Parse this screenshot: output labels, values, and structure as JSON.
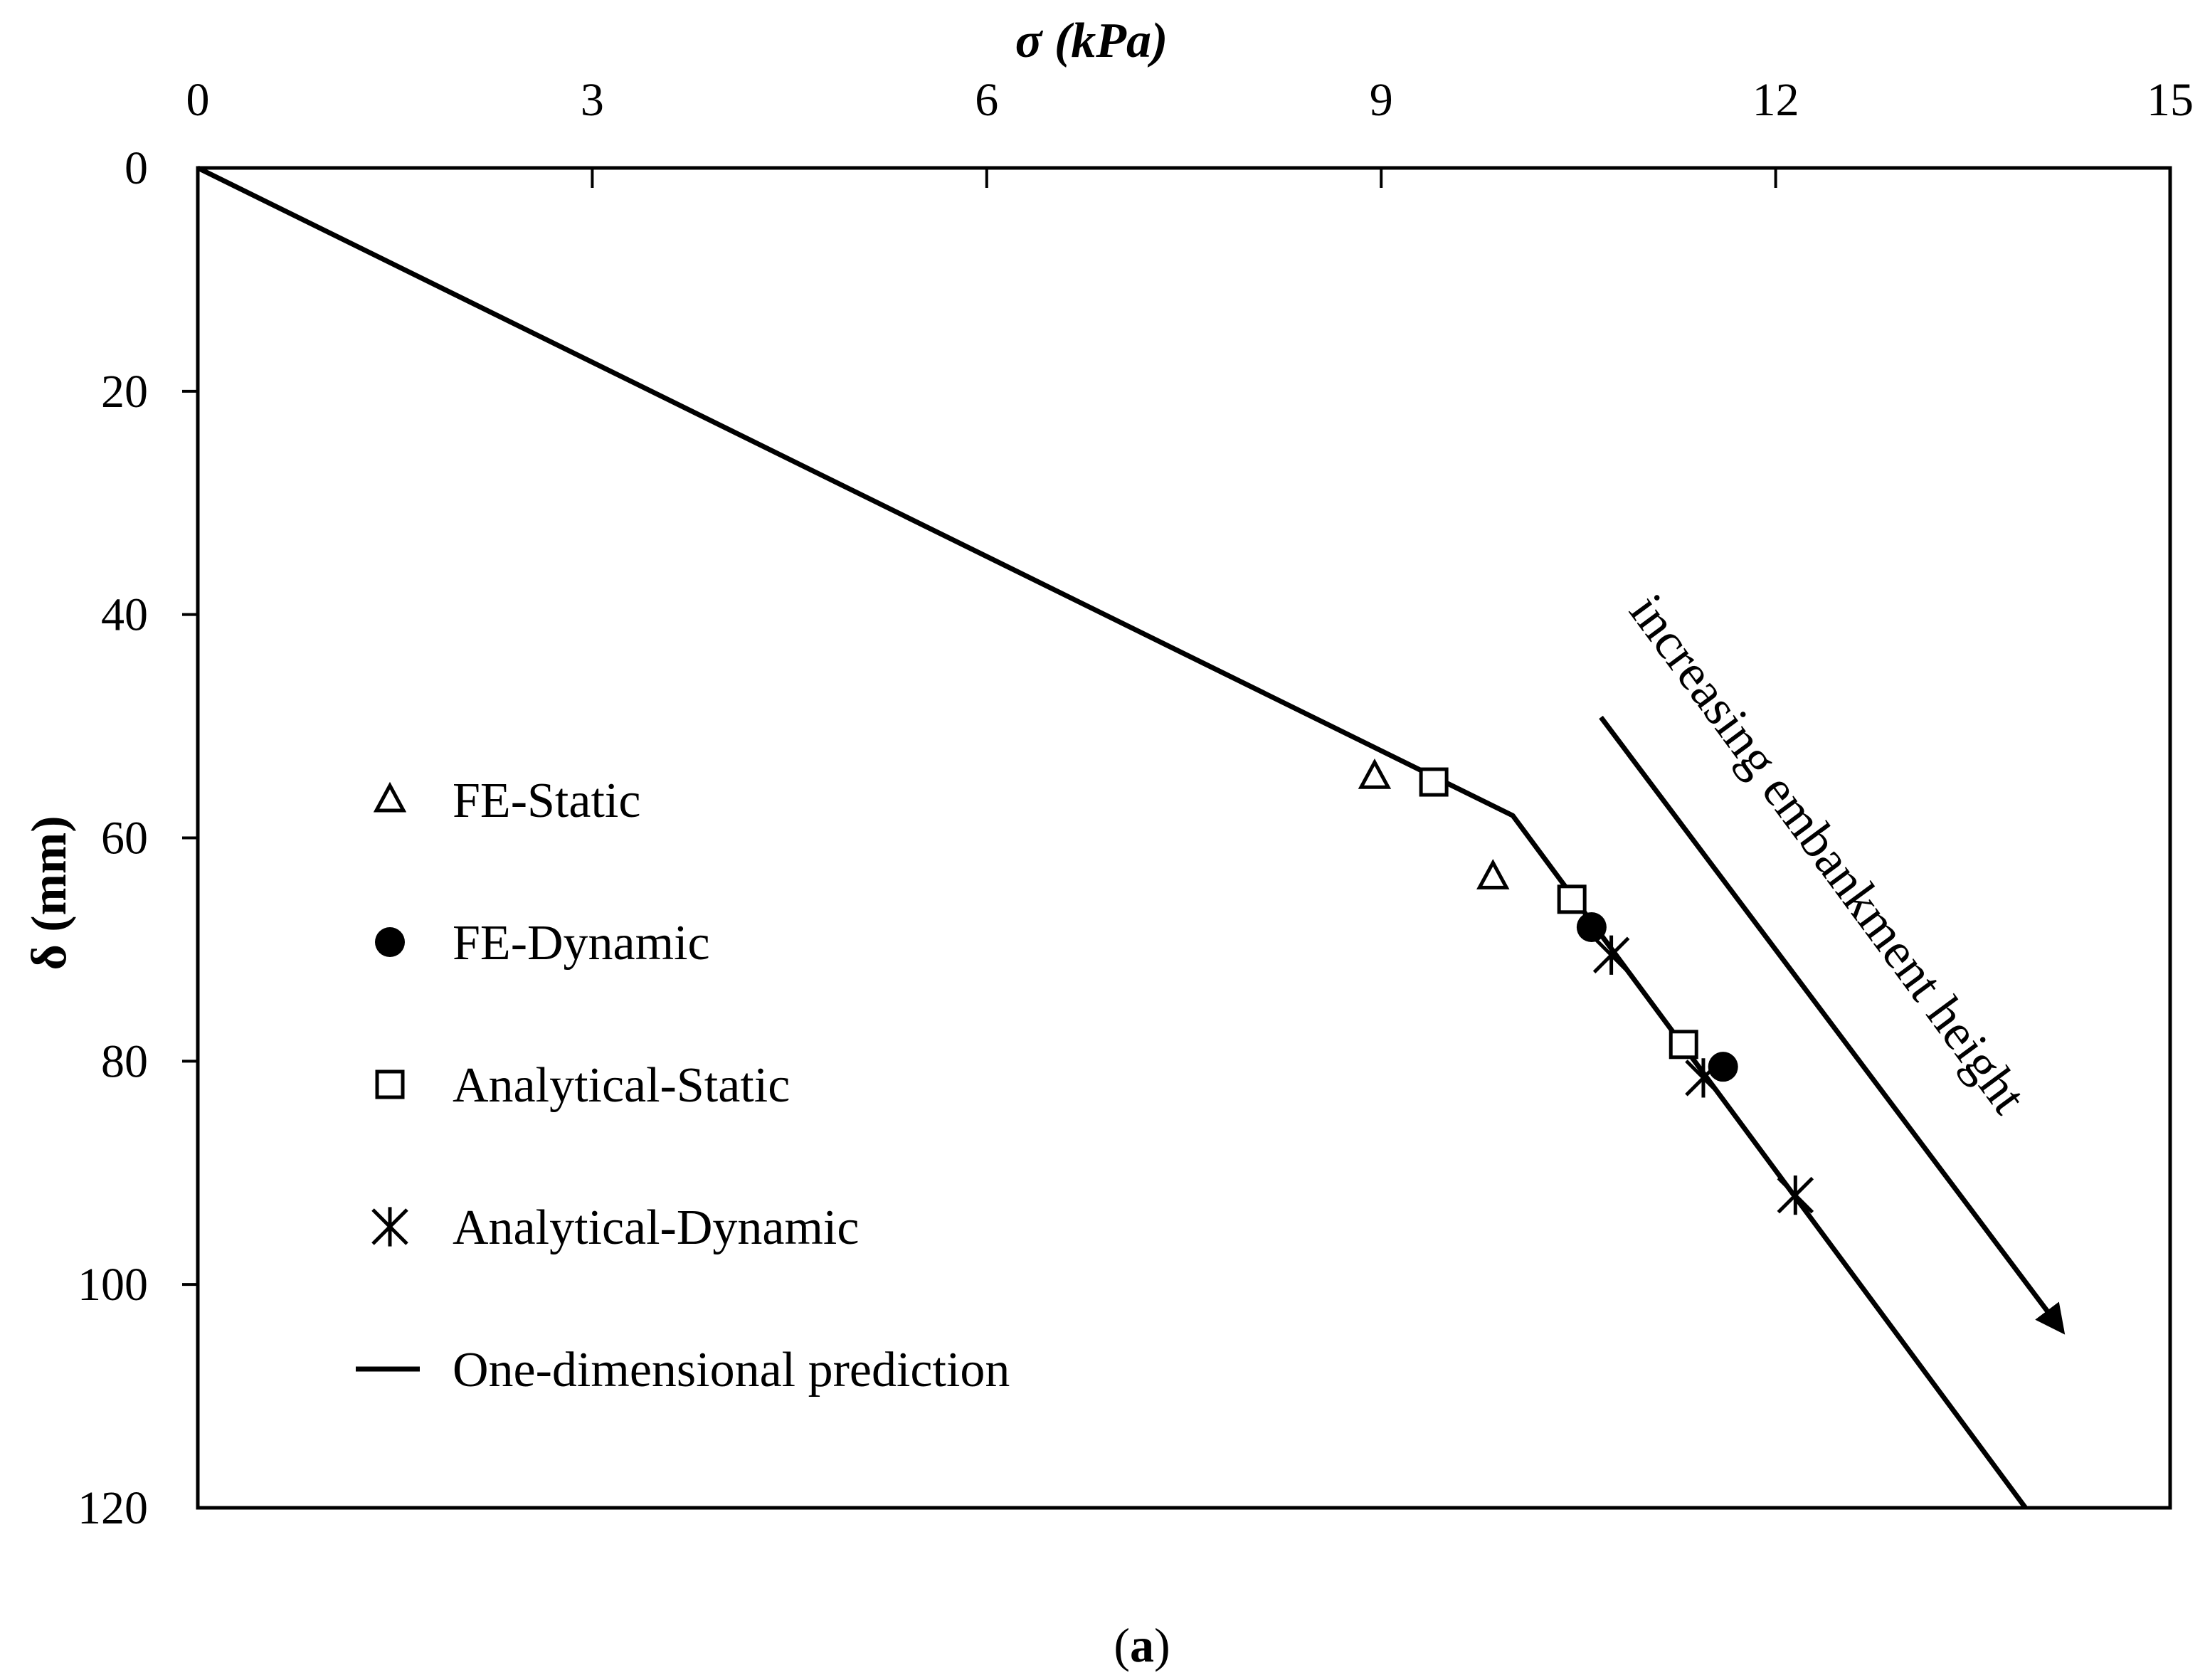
{
  "chart_data": {
    "type": "scatter",
    "x_axis": {
      "label": "σ (kPa)",
      "position": "top",
      "range": [
        0,
        15
      ],
      "ticks": [
        "0",
        "3",
        "6",
        "9",
        "12",
        "15"
      ]
    },
    "y_axis": {
      "label": "δ (mm)",
      "range": [
        0,
        120
      ],
      "inverted": true,
      "ticks": [
        "0",
        "20",
        "40",
        "60",
        "80",
        "100",
        "120"
      ]
    },
    "grid": false,
    "legend_position": "left",
    "series": [
      {
        "name": "FE-Static",
        "marker": "open-triangle",
        "points": [
          [
            8.95,
            54.5
          ],
          [
            9.85,
            63.5
          ]
        ]
      },
      {
        "name": "FE-Dynamic",
        "marker": "filled-circle",
        "points": [
          [
            10.6,
            68
          ],
          [
            11.6,
            80.5
          ]
        ]
      },
      {
        "name": "Analytical-Static",
        "marker": "open-square",
        "points": [
          [
            9.4,
            55
          ],
          [
            10.45,
            65.5
          ],
          [
            11.3,
            78.5
          ]
        ]
      },
      {
        "name": "Analytical-Dynamic",
        "marker": "star",
        "points": [
          [
            10.75,
            70.5
          ],
          [
            11.45,
            81.5
          ],
          [
            12.15,
            92
          ]
        ]
      },
      {
        "name": "One-dimensional prediction",
        "marker": "line",
        "points": [
          [
            0,
            0
          ],
          [
            10,
            58
          ],
          [
            13.9,
            120
          ]
        ]
      }
    ],
    "annotation": {
      "text": "increasing embankment height",
      "arrow": "down-right"
    },
    "caption": {
      "open": "(",
      "bold": "a",
      "close": ")"
    },
    "colors": {
      "ink": "#000000",
      "background": "#ffffff"
    }
  }
}
